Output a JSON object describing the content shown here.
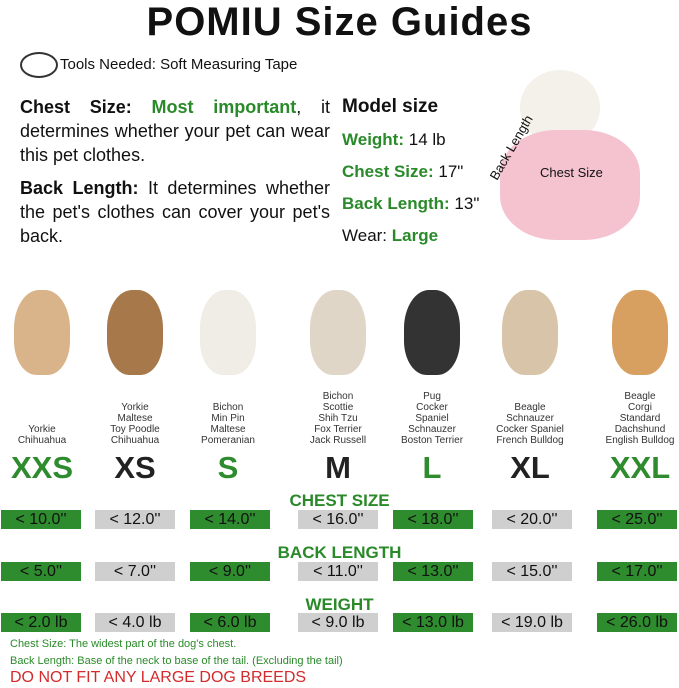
{
  "title": "POMIU Size Guides",
  "tools": "Tools Needed: Soft Measuring Tape",
  "chest_desc": {
    "label": "Chest Size:",
    "highlight": "Most important",
    "text": ", it determines whether your pet can wear this pet clothes."
  },
  "back_desc": {
    "label": "Back Length:",
    "text": " It determines whether the pet's clothes can cover your pet's back."
  },
  "model": {
    "heading": "Model size",
    "weight_label": "Weight:",
    "weight": "14 lb",
    "chest_label": "Chest Size:",
    "chest": "17\"",
    "back_label": "Back Length:",
    "back": "13\"",
    "wear_label": "Wear:",
    "wear": "Large"
  },
  "photo_labels": {
    "back": "Back Length",
    "chest": "Chest Size"
  },
  "sizes": [
    {
      "size": "XXS",
      "breeds": [
        "Yorkie",
        "Chihuahua"
      ],
      "chest": "< 10.0''",
      "back": "< 5.0''",
      "weight": "< 2.0 lb",
      "color": "green"
    },
    {
      "size": "XS",
      "breeds": [
        "Yorkie",
        "Maltese",
        "Toy Poodle",
        "Chihuahua"
      ],
      "chest": "< 12.0''",
      "back": "< 7.0''",
      "weight": "< 4.0 lb",
      "color": "black"
    },
    {
      "size": "S",
      "breeds": [
        "Bichon",
        "Min Pin",
        "Maltese",
        "Pomeranian"
      ],
      "chest": "< 14.0''",
      "back": "< 9.0''",
      "weight": "< 6.0 lb",
      "color": "green"
    },
    {
      "size": "M",
      "breeds": [
        "Bichon",
        "Scottie",
        "Shih Tzu",
        "Fox Terrier",
        "Jack Russell"
      ],
      "chest": "< 16.0''",
      "back": "< 11.0''",
      "weight": "< 9.0 lb",
      "color": "black"
    },
    {
      "size": "L",
      "breeds": [
        "Pug",
        "Cocker",
        "Spaniel",
        "Schnauzer",
        "Boston Terrier"
      ],
      "chest": "< 18.0''",
      "back": "< 13.0''",
      "weight": "< 13.0 lb",
      "color": "green"
    },
    {
      "size": "XL",
      "breeds": [
        "Beagle",
        "Schnauzer",
        "Cocker Spaniel",
        "French Bulldog"
      ],
      "chest": "< 20.0''",
      "back": "< 15.0''",
      "weight": "< 19.0 lb",
      "color": "black"
    },
    {
      "size": "XXL",
      "breeds": [
        "Beagle",
        "Corgi",
        "Standard",
        "Dachshund",
        "English Bulldog"
      ],
      "chest": "< 25.0''",
      "back": "< 17.0''",
      "weight": "< 26.0 lb",
      "color": "green"
    }
  ],
  "sections": {
    "chest": "CHEST SIZE",
    "back": "BACK LENGTH",
    "weight": "WEIGHT"
  },
  "notes": {
    "chest": "Chest Size: The widest part of the dog's chest.",
    "back": "Back Length: Base of the neck to base of the tail. (Excluding the tail)",
    "warning": "DO NOT FIT ANY LARGE DOG BREEDS"
  },
  "colors": {
    "green": "#2e8b2e",
    "gray": "#cfcfcf",
    "red": "#d42a2a"
  }
}
